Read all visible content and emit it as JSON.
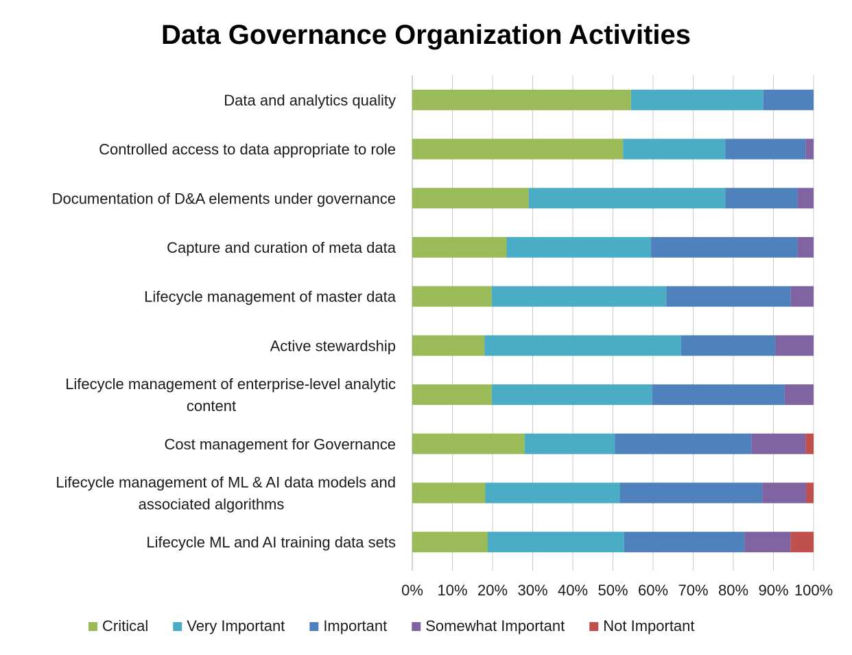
{
  "chart_data": {
    "type": "bar",
    "orientation": "horizontal",
    "stacked": "percent",
    "title": "Data Governance Organization Activities",
    "xlabel": "",
    "ylabel": "",
    "xlim": [
      0,
      100
    ],
    "x_ticks": [
      "0%",
      "10%",
      "20%",
      "30%",
      "40%",
      "50%",
      "60%",
      "70%",
      "80%",
      "90%",
      "100%"
    ],
    "grid": "vertical gridlines on",
    "legend_position": "bottom",
    "categories": [
      [
        "Data and analytics quality"
      ],
      [
        "Controlled access to data appropriate to role"
      ],
      [
        "Documentation of D&A elements under governance"
      ],
      [
        "Capture and curation of meta data"
      ],
      [
        "Lifecycle management of master data"
      ],
      [
        "Active stewardship"
      ],
      [
        "Lifecycle management of enterprise-level analytic",
        "content"
      ],
      [
        "Cost management for Governance"
      ],
      [
        "Lifecycle management of ML & AI data models and",
        "associated algorithms"
      ],
      [
        "Lifecycle ML and AI training data sets"
      ]
    ],
    "series": [
      {
        "name": "Critical",
        "color": "#9BBB59",
        "values": [
          54.5,
          52.5,
          29,
          23.5,
          19.8,
          18,
          19.8,
          28,
          18.2,
          18.8
        ]
      },
      {
        "name": "Very Important",
        "color": "#4BACC6",
        "values": [
          33,
          25.5,
          49,
          36,
          43.5,
          49,
          40,
          22.5,
          33.5,
          34
        ]
      },
      {
        "name": "Important",
        "color": "#4F81BD",
        "values": [
          12.5,
          20,
          18,
          36.5,
          31,
          23.5,
          33,
          34,
          35.5,
          30
        ]
      },
      {
        "name": "Somewhat Important",
        "color": "#8064A2",
        "values": [
          0,
          2,
          4,
          4,
          5.7,
          9.5,
          7.2,
          13.5,
          11,
          11.5
        ]
      },
      {
        "name": "Not Important",
        "color": "#C0504D",
        "values": [
          0,
          0,
          0,
          0,
          0,
          0,
          0,
          2,
          1.8,
          5.7
        ]
      }
    ]
  }
}
